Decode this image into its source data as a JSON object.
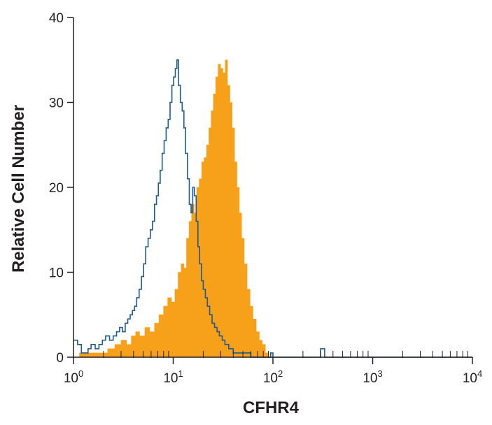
{
  "chart_data": {
    "type": "area",
    "title": "",
    "xlabel": "CFHR4",
    "ylabel": "Relative Cell Number",
    "x_scale": "log",
    "xlim": [
      1,
      10000
    ],
    "ylim": [
      0,
      40
    ],
    "x_ticks": [
      {
        "value": 1,
        "base": "10",
        "exp": "0"
      },
      {
        "value": 10,
        "base": "10",
        "exp": "1"
      },
      {
        "value": 100,
        "base": "10",
        "exp": "2"
      },
      {
        "value": 1000,
        "base": "10",
        "exp": "3"
      },
      {
        "value": 10000,
        "base": "10",
        "exp": "4"
      }
    ],
    "y_ticks": [
      "0",
      "10",
      "20",
      "30",
      "40"
    ],
    "grid": false,
    "series": [
      {
        "kind": "filled",
        "color": "#f7a11a",
        "points": [
          [
            1.0,
            0
          ],
          [
            1.15,
            0.5
          ],
          [
            1.35,
            0.5
          ],
          [
            1.6,
            0.5
          ],
          [
            1.9,
            0.5
          ],
          [
            2.2,
            1
          ],
          [
            2.6,
            1.5
          ],
          [
            3.0,
            2
          ],
          [
            3.4,
            1.5
          ],
          [
            3.8,
            2.5
          ],
          [
            4.2,
            3
          ],
          [
            4.6,
            2.5
          ],
          [
            5.2,
            3.5
          ],
          [
            5.8,
            3
          ],
          [
            6.5,
            4
          ],
          [
            7.2,
            5
          ],
          [
            8.0,
            6
          ],
          [
            8.8,
            7
          ],
          [
            9.6,
            6.5
          ],
          [
            10.4,
            8
          ],
          [
            11.2,
            10
          ],
          [
            12.0,
            11
          ],
          [
            12.8,
            10.5
          ],
          [
            13.6,
            14
          ],
          [
            14.4,
            16
          ],
          [
            15.3,
            18
          ],
          [
            16.2,
            17
          ],
          [
            17.2,
            20
          ],
          [
            18.2,
            21
          ],
          [
            19.3,
            23
          ],
          [
            20.4,
            23.5
          ],
          [
            21.6,
            25
          ],
          [
            22.8,
            27
          ],
          [
            24.0,
            29
          ],
          [
            25.3,
            31
          ],
          [
            26.7,
            33
          ],
          [
            28.2,
            34.5
          ],
          [
            29.8,
            34
          ],
          [
            31.5,
            33.5
          ],
          [
            33.2,
            35
          ],
          [
            35.0,
            32
          ],
          [
            37.0,
            30
          ],
          [
            39.0,
            27
          ],
          [
            41.2,
            23
          ],
          [
            43.5,
            20
          ],
          [
            46.0,
            17
          ],
          [
            48.5,
            14
          ],
          [
            51.5,
            11
          ],
          [
            55.0,
            8
          ],
          [
            59.0,
            6
          ],
          [
            63.0,
            4.5
          ],
          [
            68.0,
            3
          ],
          [
            73.0,
            2
          ],
          [
            78.0,
            1.5
          ],
          [
            84.0,
            0.5
          ],
          [
            90.0,
            0
          ]
        ]
      },
      {
        "kind": "outline",
        "color": "#1f5a8a",
        "points": [
          [
            1.0,
            2
          ],
          [
            1.1,
            1.5
          ],
          [
            1.2,
            0.5
          ],
          [
            1.3,
            0.5
          ],
          [
            1.4,
            1
          ],
          [
            1.5,
            1.5
          ],
          [
            1.65,
            1
          ],
          [
            1.8,
            1.5
          ],
          [
            1.95,
            2
          ],
          [
            2.1,
            2.5
          ],
          [
            2.3,
            2
          ],
          [
            2.5,
            2.5
          ],
          [
            2.7,
            3
          ],
          [
            2.9,
            3.5
          ],
          [
            3.1,
            3
          ],
          [
            3.3,
            4
          ],
          [
            3.5,
            4.5
          ],
          [
            3.7,
            5
          ],
          [
            3.9,
            5.5
          ],
          [
            4.1,
            6
          ],
          [
            4.3,
            7
          ],
          [
            4.55,
            8
          ],
          [
            4.8,
            9.5
          ],
          [
            5.05,
            11
          ],
          [
            5.3,
            13
          ],
          [
            5.6,
            14
          ],
          [
            5.9,
            15
          ],
          [
            6.2,
            16
          ],
          [
            6.5,
            18
          ],
          [
            6.8,
            19
          ],
          [
            7.1,
            20.5
          ],
          [
            7.4,
            22
          ],
          [
            7.75,
            24
          ],
          [
            8.1,
            25.5
          ],
          [
            8.5,
            27
          ],
          [
            8.9,
            28
          ],
          [
            9.3,
            30
          ],
          [
            9.7,
            32
          ],
          [
            10.1,
            33
          ],
          [
            10.5,
            34
          ],
          [
            10.9,
            35
          ],
          [
            11.3,
            32
          ],
          [
            11.8,
            30
          ],
          [
            12.3,
            29
          ],
          [
            12.8,
            27
          ],
          [
            13.3,
            24
          ],
          [
            13.9,
            21
          ],
          [
            14.5,
            18
          ],
          [
            15.1,
            17
          ],
          [
            15.7,
            20
          ],
          [
            16.3,
            19
          ],
          [
            17.0,
            16
          ],
          [
            17.7,
            13
          ],
          [
            18.4,
            11
          ],
          [
            19.2,
            9
          ],
          [
            20.0,
            8
          ],
          [
            21.0,
            7
          ],
          [
            22.0,
            6
          ],
          [
            23.2,
            5
          ],
          [
            24.5,
            4
          ],
          [
            26.0,
            3.5
          ],
          [
            27.5,
            3
          ],
          [
            29.0,
            2.5
          ],
          [
            31.0,
            2
          ],
          [
            33.0,
            1.5
          ],
          [
            36.0,
            1
          ],
          [
            40.0,
            0.5
          ],
          [
            45.0,
            0.5
          ],
          [
            50.0,
            0.5
          ],
          [
            60.0,
            0
          ],
          [
            80.0,
            0
          ],
          [
            92.0,
            0
          ],
          [
            95.0,
            0.5
          ],
          [
            100.0,
            0
          ],
          [
            200.0,
            0
          ],
          [
            290.0,
            0
          ],
          [
            300.0,
            1
          ],
          [
            315.0,
            1
          ],
          [
            330.0,
            0
          ],
          [
            1000.0,
            0
          ],
          [
            10000.0,
            0
          ]
        ]
      }
    ]
  }
}
